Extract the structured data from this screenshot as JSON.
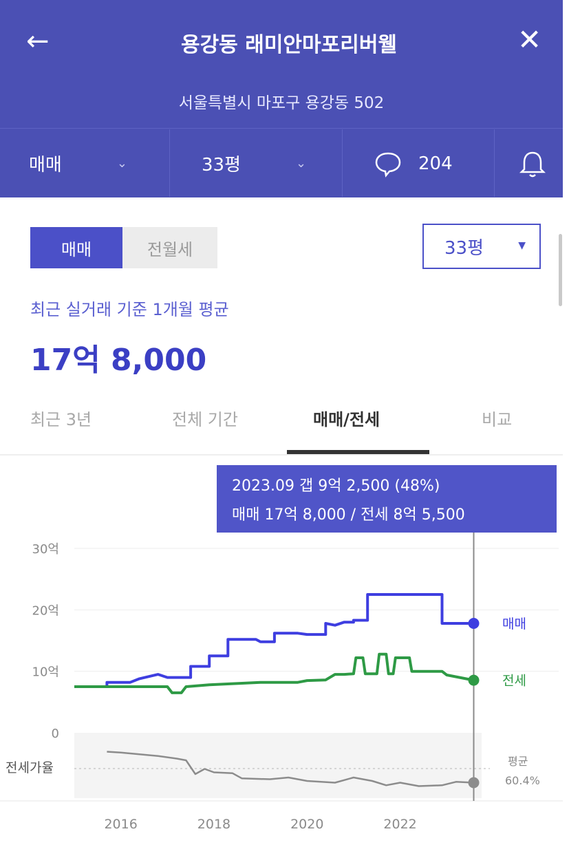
{
  "header": {
    "back_icon": "arrow-left-icon",
    "title": "용강동 래미안마포리버웰",
    "close_icon": "close-icon",
    "address": "서울특별시 마포구 용강동 502"
  },
  "tabbar": {
    "trade_type": "매매",
    "size": "33평",
    "comment_count": "204",
    "chat_icon": "speech-bubble-icon",
    "bell_icon": "bell-icon"
  },
  "segment": {
    "active": "매매",
    "inactive": "전월세"
  },
  "size_select": "33평",
  "summary": {
    "subtitle": "최근 실거래 기준 1개월 평균",
    "price": "17억 8,000"
  },
  "period_tabs": [
    "최근 3년",
    "전체 기간",
    "매매/전세",
    "비교"
  ],
  "active_period_tab": 2,
  "tooltip": {
    "line1": "2023.09  갭 9억 2,500 (48%)",
    "line2": "매매 17억 8,000 / 전세 8억 5,500"
  },
  "colors": {
    "brand": "#4b50b4",
    "sale": "#3e3ee0",
    "jeonse": "#2e9a45",
    "ratio": "#8c8c8c"
  },
  "chart_data": {
    "type": "line",
    "y_ticks": [
      "30억",
      "20억",
      "10억",
      "0"
    ],
    "ylim": [
      0,
      30
    ],
    "xlim": [
      2015.0,
      2023.75
    ],
    "x_ticks": [
      "2016",
      "2018",
      "2020",
      "2022"
    ],
    "x_tick_values": [
      2016,
      2018,
      2020,
      2022
    ],
    "ratio_label": "전세가율",
    "ratio_avg_label": "평균",
    "ratio_avg_value": "60.4%",
    "series": [
      {
        "name": "매매",
        "points": [
          [
            2015.0,
            7.5
          ],
          [
            2015.7,
            7.5
          ],
          [
            2015.7,
            8.2
          ],
          [
            2016.2,
            8.2
          ],
          [
            2016.4,
            8.8
          ],
          [
            2016.8,
            9.5
          ],
          [
            2017.0,
            9.0
          ],
          [
            2017.5,
            9.0
          ],
          [
            2017.5,
            10.8
          ],
          [
            2017.9,
            10.8
          ],
          [
            2017.9,
            12.5
          ],
          [
            2018.3,
            12.5
          ],
          [
            2018.3,
            15.2
          ],
          [
            2018.9,
            15.2
          ],
          [
            2019.0,
            14.8
          ],
          [
            2019.3,
            14.8
          ],
          [
            2019.3,
            16.2
          ],
          [
            2019.8,
            16.2
          ],
          [
            2020.0,
            16.0
          ],
          [
            2020.4,
            16.0
          ],
          [
            2020.4,
            17.8
          ],
          [
            2020.6,
            17.5
          ],
          [
            2020.8,
            18.0
          ],
          [
            2021.0,
            18.0
          ],
          [
            2021.0,
            18.3
          ],
          [
            2021.3,
            18.3
          ],
          [
            2021.3,
            22.5
          ],
          [
            2022.9,
            22.5
          ],
          [
            2022.9,
            17.8
          ],
          [
            2023.3,
            17.8
          ],
          [
            2023.58,
            17.8
          ]
        ]
      },
      {
        "name": "전세",
        "points": [
          [
            2015.0,
            7.5
          ],
          [
            2017.0,
            7.5
          ],
          [
            2017.1,
            6.5
          ],
          [
            2017.3,
            6.5
          ],
          [
            2017.4,
            7.5
          ],
          [
            2017.9,
            7.8
          ],
          [
            2019.0,
            8.2
          ],
          [
            2019.8,
            8.2
          ],
          [
            2020.0,
            8.5
          ],
          [
            2020.4,
            8.6
          ],
          [
            2020.6,
            9.5
          ],
          [
            2020.8,
            9.5
          ],
          [
            2021.0,
            9.6
          ],
          [
            2021.05,
            12.2
          ],
          [
            2021.2,
            12.2
          ],
          [
            2021.25,
            9.6
          ],
          [
            2021.5,
            9.6
          ],
          [
            2021.55,
            12.8
          ],
          [
            2021.7,
            12.8
          ],
          [
            2021.75,
            9.6
          ],
          [
            2021.85,
            9.6
          ],
          [
            2021.9,
            12.2
          ],
          [
            2022.2,
            12.2
          ],
          [
            2022.25,
            10.0
          ],
          [
            2022.9,
            10.0
          ],
          [
            2023.0,
            9.4
          ],
          [
            2023.58,
            8.55
          ]
        ]
      },
      {
        "name": "전세가율",
        "points": [
          [
            2015.7,
            -2.2
          ],
          [
            2016.0,
            -2.3
          ],
          [
            2016.8,
            -2.7
          ],
          [
            2017.2,
            -3.0
          ],
          [
            2017.4,
            -3.2
          ],
          [
            2017.6,
            -4.8
          ],
          [
            2017.8,
            -4.2
          ],
          [
            2018.0,
            -4.6
          ],
          [
            2018.4,
            -4.7
          ],
          [
            2018.6,
            -5.3
          ],
          [
            2019.2,
            -5.4
          ],
          [
            2019.6,
            -5.2
          ],
          [
            2020.0,
            -5.6
          ],
          [
            2020.6,
            -5.8
          ],
          [
            2021.0,
            -5.2
          ],
          [
            2021.4,
            -5.6
          ],
          [
            2021.7,
            -6.1
          ],
          [
            2022.0,
            -5.8
          ],
          [
            2022.4,
            -6.2
          ],
          [
            2022.9,
            -6.1
          ],
          [
            2023.2,
            -5.7
          ],
          [
            2023.58,
            -5.8
          ]
        ]
      }
    ],
    "marker_x": 2023.58
  }
}
